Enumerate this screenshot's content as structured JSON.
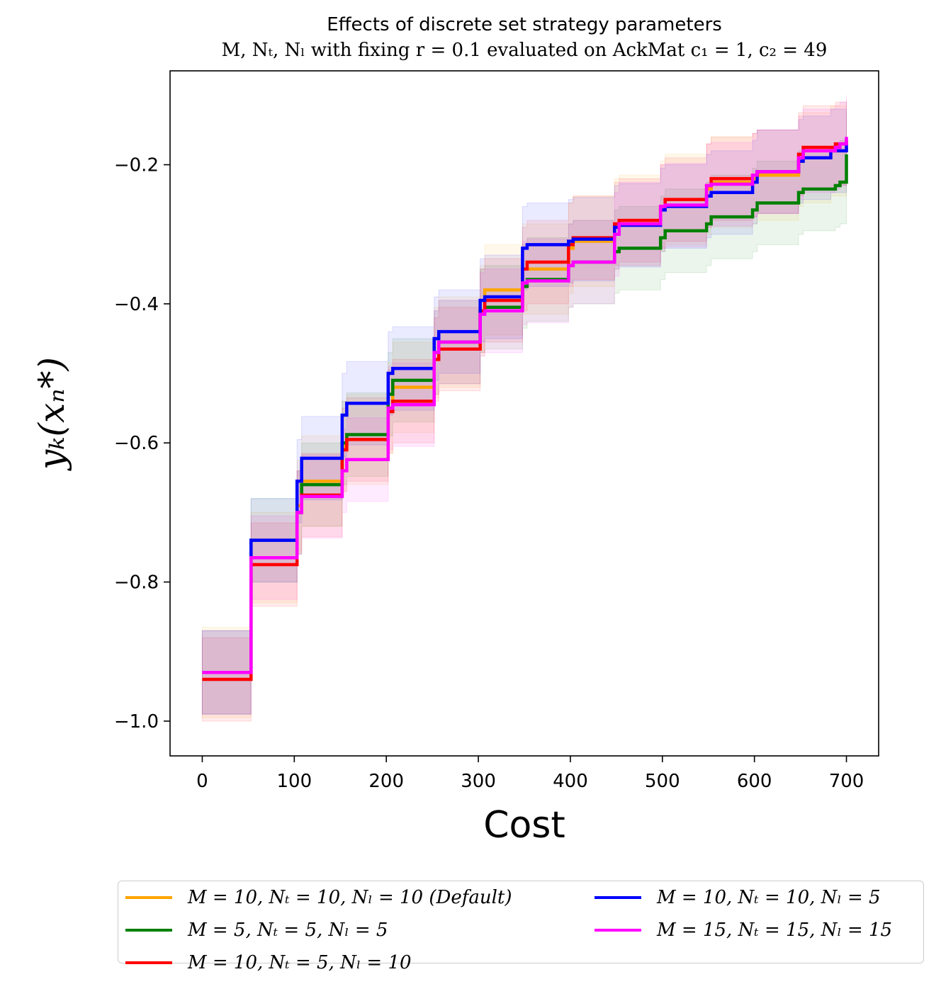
{
  "chart_data": {
    "type": "line",
    "title_line1": "Effects of discrete set strategy parameters",
    "title_line2": "M, N_T, N_L with fixing r = 0.1 evaluated on AckMat c_1 = 1, c_2 = 49",
    "title_line2_display": "M, Nₜ, Nₗ with fixing r = 0.1 evaluated on AckMat c₁ = 1, c₂ = 49",
    "xlabel": "Cost",
    "ylabel": "y_K(x_n^*)",
    "ylabel_display": "yₖ(xₙ*)",
    "xlim": [
      -35,
      735
    ],
    "ylim": [
      -1.05,
      -0.065
    ],
    "xticks": [
      0,
      100,
      200,
      300,
      400,
      500,
      600,
      700
    ],
    "xtick_labels": [
      "0",
      "100",
      "200",
      "300",
      "400",
      "500",
      "600",
      "700"
    ],
    "yticks": [
      -1.0,
      -0.8,
      -0.6,
      -0.4,
      -0.2
    ],
    "ytick_labels": [
      "−1.0",
      "−0.8",
      "−0.6",
      "−0.4",
      "−0.2"
    ],
    "legend_position": "below",
    "series": [
      {
        "name": "M = 10, N_T = 10, N_L = 10 (Default)",
        "label": "M = 10, Nₜ = 10, Nₗ = 10 (Default)",
        "color": "#ffa500",
        "band": 0.065,
        "x": [
          0,
          50,
          53,
          98,
          103,
          108,
          147,
          152,
          157,
          197,
          202,
          207,
          247,
          252,
          257,
          297,
          302,
          307,
          343,
          348,
          353,
          393,
          398,
          403,
          443,
          448,
          453,
          493,
          498,
          503,
          543,
          548,
          553,
          593,
          598,
          603,
          643,
          648,
          653,
          683,
          688,
          693,
          700
        ],
        "y": [
          -0.93,
          -0.93,
          -0.765,
          -0.765,
          -0.69,
          -0.655,
          -0.655,
          -0.605,
          -0.595,
          -0.595,
          -0.55,
          -0.52,
          -0.52,
          -0.47,
          -0.455,
          -0.455,
          -0.41,
          -0.38,
          -0.38,
          -0.35,
          -0.35,
          -0.35,
          -0.32,
          -0.31,
          -0.31,
          -0.285,
          -0.28,
          -0.28,
          -0.26,
          -0.25,
          -0.25,
          -0.235,
          -0.225,
          -0.225,
          -0.22,
          -0.215,
          -0.215,
          -0.195,
          -0.19,
          -0.18,
          -0.18,
          -0.18,
          -0.175
        ]
      },
      {
        "name": "M = 5, N_T = 5, N_L = 5",
        "label": "M = 5, Nₜ = 5, Nₗ = 5",
        "color": "#008000",
        "band": 0.06,
        "x": [
          0,
          50,
          53,
          98,
          103,
          108,
          147,
          152,
          157,
          197,
          202,
          207,
          247,
          252,
          257,
          297,
          302,
          307,
          343,
          348,
          353,
          393,
          398,
          403,
          443,
          448,
          453,
          493,
          498,
          503,
          543,
          548,
          553,
          593,
          598,
          603,
          643,
          648,
          653,
          683,
          688,
          693,
          700
        ],
        "y": [
          -0.93,
          -0.93,
          -0.74,
          -0.74,
          -0.7,
          -0.66,
          -0.66,
          -0.6,
          -0.588,
          -0.588,
          -0.53,
          -0.51,
          -0.51,
          -0.47,
          -0.455,
          -0.455,
          -0.41,
          -0.405,
          -0.405,
          -0.375,
          -0.365,
          -0.365,
          -0.345,
          -0.34,
          -0.34,
          -0.325,
          -0.32,
          -0.32,
          -0.305,
          -0.295,
          -0.295,
          -0.285,
          -0.275,
          -0.275,
          -0.265,
          -0.255,
          -0.255,
          -0.24,
          -0.235,
          -0.235,
          -0.23,
          -0.225,
          -0.185
        ]
      },
      {
        "name": "M = 10, N_T = 5, N_L = 10",
        "label": "M = 10, Nₜ = 5, Nₗ = 10",
        "color": "#ff0000",
        "band": 0.06,
        "x": [
          0,
          50,
          53,
          98,
          103,
          108,
          147,
          152,
          157,
          197,
          202,
          207,
          247,
          252,
          257,
          297,
          302,
          307,
          343,
          348,
          353,
          393,
          398,
          403,
          443,
          448,
          453,
          493,
          498,
          503,
          543,
          548,
          553,
          593,
          598,
          603,
          643,
          648,
          653,
          683,
          688,
          693,
          700
        ],
        "y": [
          -0.94,
          -0.94,
          -0.775,
          -0.775,
          -0.7,
          -0.675,
          -0.675,
          -0.61,
          -0.595,
          -0.595,
          -0.555,
          -0.54,
          -0.54,
          -0.48,
          -0.465,
          -0.465,
          -0.41,
          -0.395,
          -0.395,
          -0.35,
          -0.34,
          -0.34,
          -0.315,
          -0.305,
          -0.305,
          -0.285,
          -0.28,
          -0.28,
          -0.26,
          -0.25,
          -0.25,
          -0.23,
          -0.22,
          -0.22,
          -0.215,
          -0.21,
          -0.21,
          -0.185,
          -0.175,
          -0.175,
          -0.17,
          -0.17,
          -0.165
        ]
      },
      {
        "name": "M = 10, N_T = 10, N_L = 5",
        "label": "M = 10, Nₜ = 10, Nₗ = 5",
        "color": "#0000ff",
        "band": 0.06,
        "x": [
          0,
          50,
          53,
          98,
          103,
          108,
          147,
          152,
          157,
          197,
          202,
          207,
          247,
          252,
          257,
          297,
          302,
          307,
          343,
          348,
          353,
          393,
          398,
          403,
          443,
          448,
          453,
          493,
          498,
          503,
          543,
          548,
          553,
          593,
          598,
          603,
          643,
          648,
          653,
          683,
          688,
          693,
          700
        ],
        "y": [
          -0.93,
          -0.93,
          -0.74,
          -0.74,
          -0.655,
          -0.622,
          -0.622,
          -0.56,
          -0.543,
          -0.543,
          -0.5,
          -0.493,
          -0.493,
          -0.45,
          -0.44,
          -0.44,
          -0.395,
          -0.39,
          -0.39,
          -0.32,
          -0.315,
          -0.315,
          -0.31,
          -0.307,
          -0.307,
          -0.29,
          -0.287,
          -0.287,
          -0.265,
          -0.26,
          -0.26,
          -0.245,
          -0.24,
          -0.24,
          -0.225,
          -0.21,
          -0.21,
          -0.195,
          -0.19,
          -0.18,
          -0.18,
          -0.18,
          -0.17
        ]
      },
      {
        "name": "M = 15, N_T = 15, N_L = 15",
        "label": "M = 15, Nₜ = 15, Nₗ = 15",
        "color": "#ff00ff",
        "band": 0.06,
        "x": [
          0,
          50,
          53,
          98,
          103,
          108,
          147,
          152,
          157,
          197,
          202,
          207,
          247,
          252,
          257,
          297,
          302,
          307,
          343,
          348,
          353,
          393,
          398,
          403,
          443,
          448,
          453,
          493,
          498,
          503,
          543,
          548,
          553,
          593,
          598,
          603,
          643,
          648,
          653,
          683,
          688,
          693,
          700
        ],
        "y": [
          -0.93,
          -0.93,
          -0.765,
          -0.765,
          -0.7,
          -0.677,
          -0.677,
          -0.64,
          -0.624,
          -0.624,
          -0.55,
          -0.545,
          -0.545,
          -0.47,
          -0.455,
          -0.455,
          -0.415,
          -0.41,
          -0.41,
          -0.37,
          -0.367,
          -0.367,
          -0.345,
          -0.34,
          -0.34,
          -0.3,
          -0.285,
          -0.285,
          -0.26,
          -0.258,
          -0.258,
          -0.23,
          -0.228,
          -0.228,
          -0.215,
          -0.21,
          -0.21,
          -0.19,
          -0.18,
          -0.18,
          -0.175,
          -0.17,
          -0.16
        ]
      }
    ]
  }
}
